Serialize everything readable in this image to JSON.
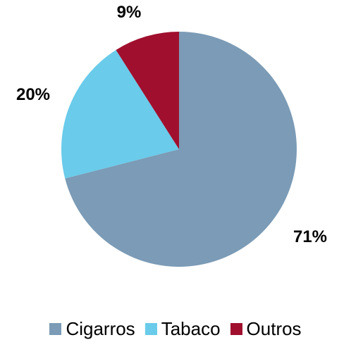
{
  "chart_data": {
    "type": "pie",
    "categories": [
      "Cigarros",
      "Tabaco",
      "Outros"
    ],
    "values": [
      71,
      20,
      9
    ],
    "labels": [
      "71%",
      "20%",
      "9%"
    ],
    "colors": [
      "#7B9BB6",
      "#6ACBEA",
      "#A0102E"
    ],
    "start_angle": "12 o'clock",
    "direction": "clockwise",
    "legend": "bottom",
    "title": ""
  }
}
